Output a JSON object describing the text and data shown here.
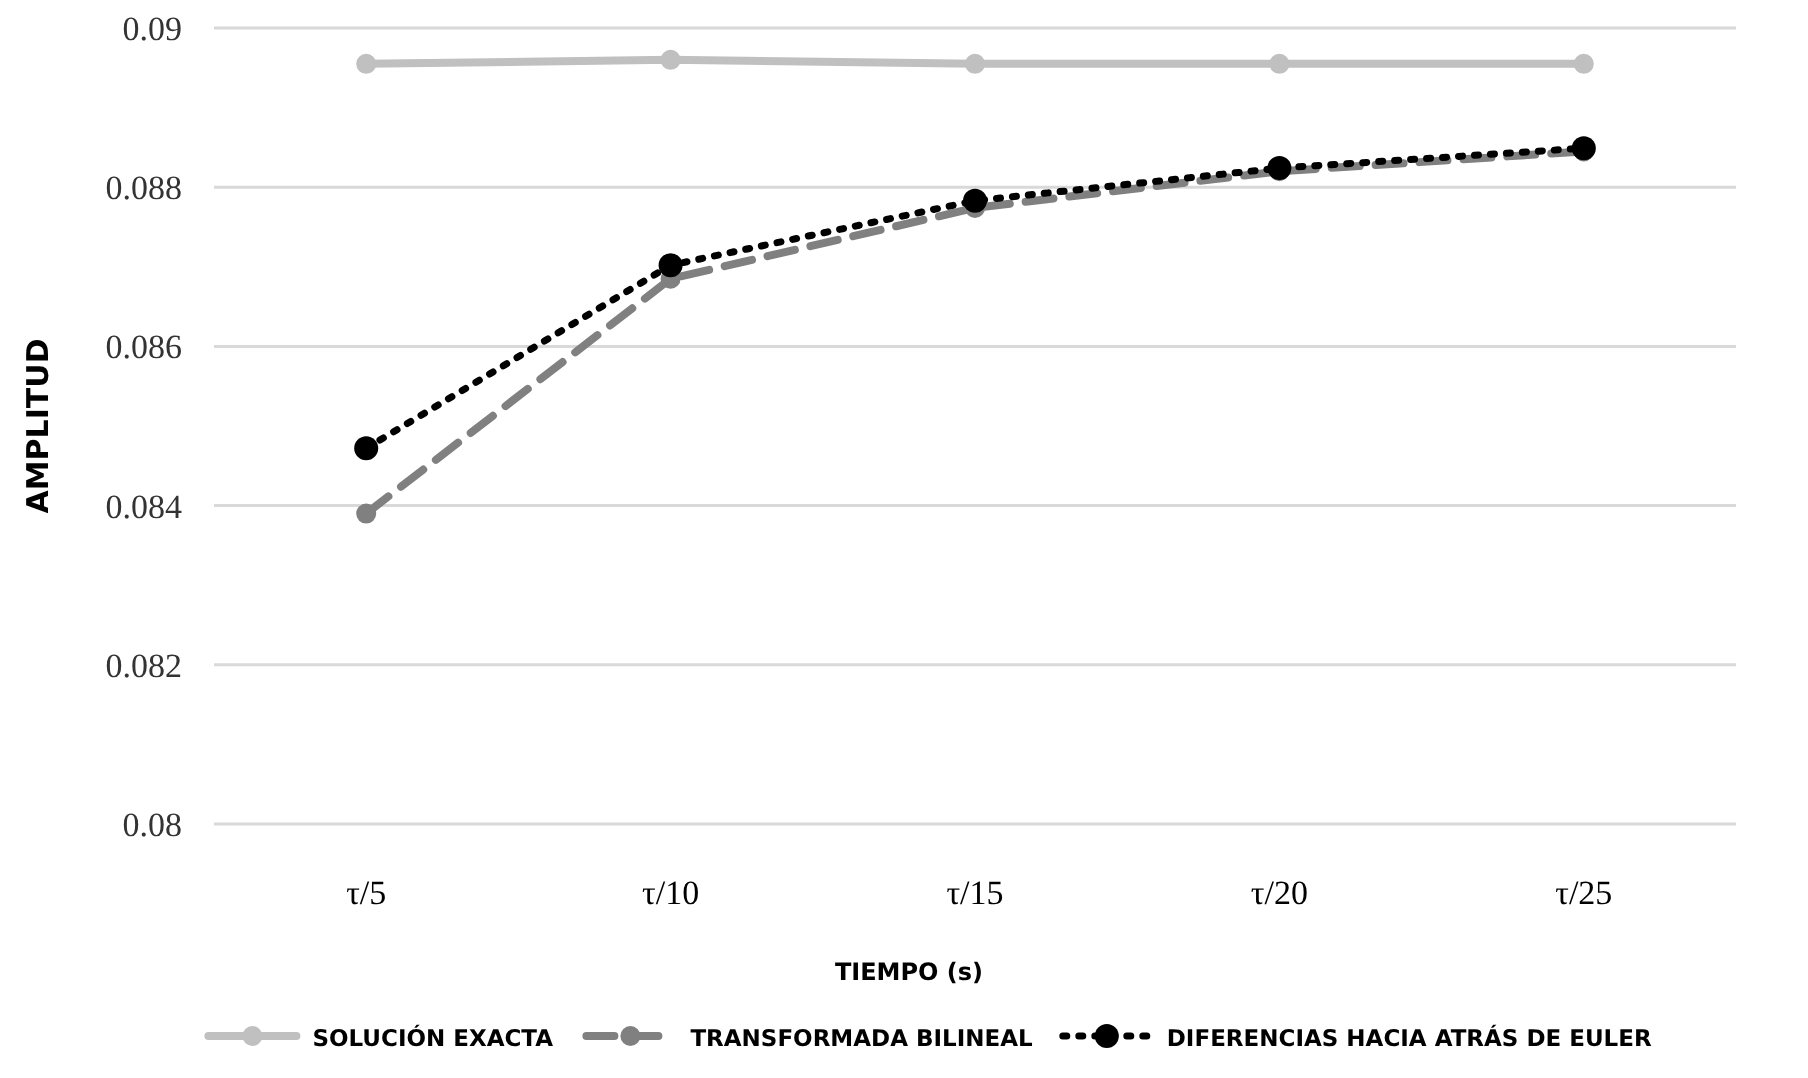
{
  "chart_data": {
    "type": "line",
    "xlabel": "TIEMPO (s)",
    "ylabel": "AMPLITUD",
    "categories": [
      "τ/5",
      "τ/10",
      "τ/15",
      "τ/20",
      "τ/25"
    ],
    "ylim": [
      0.08,
      0.09
    ],
    "yticks": [
      0.08,
      0.082,
      0.084,
      0.086,
      0.088,
      0.09
    ],
    "grid": "y",
    "legend": "bottom",
    "marker": "circle",
    "series": [
      {
        "name": "SOLUCIÓN EXACTA",
        "color": "#c0c0c0",
        "line_style": "solid",
        "values": [
          0.08955,
          0.0896,
          0.08955,
          0.08955,
          0.08955
        ]
      },
      {
        "name": "TRANSFORMADA BILINEAL",
        "color": "#808080",
        "line_style": "dashed",
        "values": [
          0.0839,
          0.08685,
          0.08774,
          0.0882,
          0.08845
        ]
      },
      {
        "name": "DIFERENCIAS HACIA ATRÁS DE EULER",
        "color": "#000000",
        "line_style": "dotted",
        "values": [
          0.08472,
          0.08702,
          0.08783,
          0.08824,
          0.08849
        ]
      }
    ]
  }
}
